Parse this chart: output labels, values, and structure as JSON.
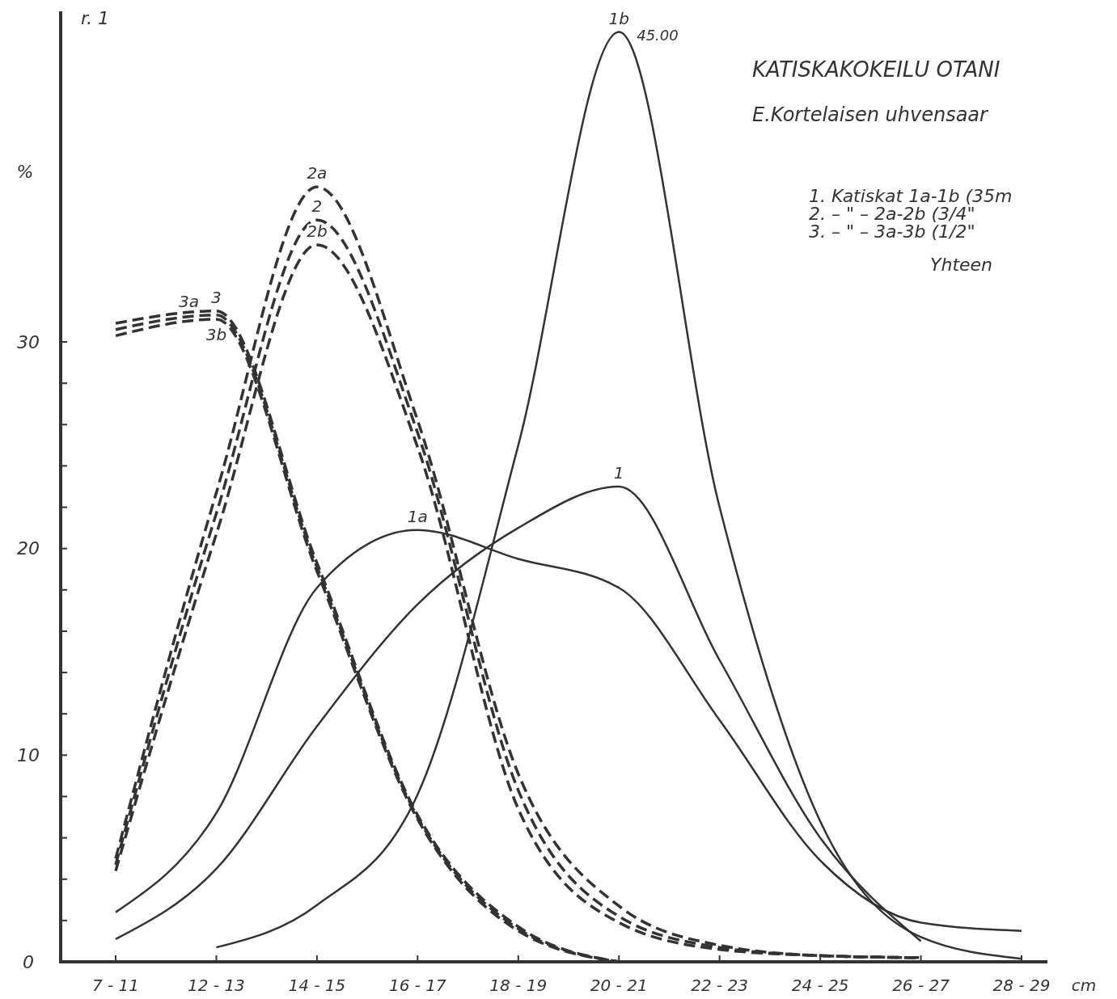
{
  "chart_data": {
    "type": "line",
    "title": "KATISKAKOKEILU OTANI",
    "subtitle": "E.Kortelaisen uhvensaar",
    "ylabel": "%",
    "xlabel": "cm",
    "categories": [
      "7 - 11",
      "12 - 13",
      "14 - 15",
      "16 - 17",
      "18 - 19",
      "20 - 21",
      "22 - 23",
      "24 - 25",
      "26 - 27",
      "28 - 29"
    ],
    "ylim": [
      0,
      46
    ],
    "yticks": [
      0,
      {
        "value": 2,
        "label": null
      },
      {
        "value": 4,
        "label": null
      },
      {
        "value": 6,
        "label": null
      },
      {
        "value": 8,
        "label": null
      },
      10,
      {
        "value": 12,
        "label": null
      },
      {
        "value": 14,
        "label": null
      },
      {
        "value": 16,
        "label": null
      },
      {
        "value": 18,
        "label": null
      },
      20,
      {
        "value": 22,
        "label": null
      },
      {
        "value": 24,
        "label": null
      },
      {
        "value": 26,
        "label": null
      },
      {
        "value": 28,
        "label": null
      },
      30
    ],
    "grid": false,
    "legend": false,
    "marker": "none",
    "series": [
      {
        "name": "1",
        "color": "#333333",
        "line_style": "solid",
        "values": [
          1.1,
          4.5,
          11.4,
          17.3,
          21.0,
          23.0,
          14.6,
          6.0,
          1.0,
          null
        ]
      },
      {
        "name": "1a",
        "color": "#333333",
        "line_style": "solid",
        "values": [
          2.4,
          7.2,
          18.1,
          20.9,
          19.5,
          18.1,
          11.7,
          4.9,
          1.9,
          1.5
        ]
      },
      {
        "name": "1b",
        "color": "#333333",
        "line_style": "solid",
        "values": [
          null,
          0.7,
          2.75,
          8.1,
          25,
          45,
          22,
          6.8,
          1.2,
          0.15
        ]
      },
      {
        "name": "2",
        "color": "#333333",
        "line_style": "dashed",
        "values": [
          4.7,
          21.7,
          35.9,
          25.6,
          8.3,
          2.2,
          0.7,
          0.3,
          0.2,
          null
        ]
      },
      {
        "name": "2a",
        "color": "#333333",
        "line_style": "dashed",
        "values": [
          5.0,
          22.7,
          37.5,
          26.2,
          9.1,
          2.7,
          0.8,
          0.3,
          0.2,
          null
        ]
      },
      {
        "name": "2b",
        "color": "#333333",
        "line_style": "dashed",
        "values": [
          4.4,
          20.7,
          34.7,
          24.9,
          7.4,
          1.9,
          0.6,
          0.3,
          0.2,
          null
        ]
      },
      {
        "name": "3",
        "color": "#333333",
        "line_style": "dashed",
        "values": [
          30.9,
          31.5,
          19.3,
          7.1,
          1.7,
          0,
          null,
          null,
          null,
          null
        ]
      },
      {
        "name": "3a",
        "color": "#333333",
        "line_style": "dashed",
        "values": [
          30.6,
          31.3,
          19.1,
          7.0,
          1.6,
          0,
          null,
          null,
          null,
          null
        ]
      },
      {
        "name": "3b",
        "color": "#333333",
        "line_style": "dashed",
        "values": [
          30.3,
          31.1,
          18.9,
          6.9,
          1.5,
          0,
          null,
          null,
          null,
          null
        ]
      }
    ],
    "annotations": [
      "r. 1",
      "1.  Katiskat 1a-1b (35m",
      "2.    – \" –   2a-2b (3/4\"",
      "3.    – \" –   3a-3b (1/2\"",
      "Yhteen",
      {
        "text": "45.00",
        "x": "20 - 21",
        "y": 45
      }
    ]
  }
}
